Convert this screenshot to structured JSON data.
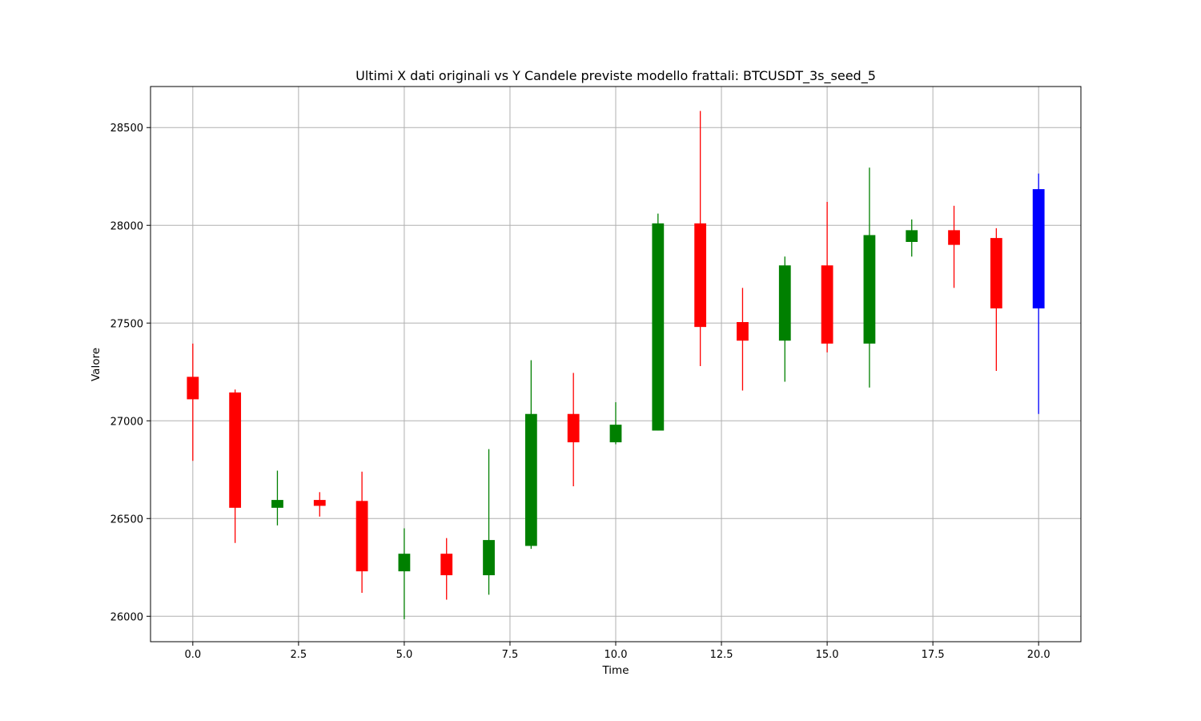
{
  "chart_data": {
    "type": "candlestick",
    "title": "Ultimi X dati originali vs Y Candele previste modello frattali: BTCUSDT_3s_seed_5",
    "xlabel": "Time",
    "ylabel": "Valore",
    "xlim": [
      -1,
      21
    ],
    "ylim": [
      25870,
      28710
    ],
    "xticks": [
      0.0,
      2.5,
      5.0,
      7.5,
      10.0,
      12.5,
      15.0,
      17.5,
      20.0
    ],
    "xtick_labels": [
      "0.0",
      "2.5",
      "5.0",
      "7.5",
      "10.0",
      "12.5",
      "15.0",
      "17.5",
      "20.0"
    ],
    "yticks": [
      26000,
      26500,
      27000,
      27500,
      28000,
      28500
    ],
    "ytick_labels": [
      "26000",
      "26500",
      "27000",
      "27500",
      "28000",
      "28500"
    ],
    "grid": true,
    "colors": {
      "up": "#008000",
      "down": "#ff0000",
      "predicted": "#0000ff",
      "grid": "#b0b0b0"
    },
    "candles": [
      {
        "x": 0,
        "open": 27225,
        "high": 27395,
        "low": 26795,
        "close": 27110,
        "color": "down"
      },
      {
        "x": 1,
        "open": 27145,
        "high": 27160,
        "low": 26375,
        "close": 26555,
        "color": "down"
      },
      {
        "x": 2,
        "open": 26555,
        "high": 26745,
        "low": 26465,
        "close": 26595,
        "color": "up"
      },
      {
        "x": 3,
        "open": 26595,
        "high": 26635,
        "low": 26510,
        "close": 26565,
        "color": "down"
      },
      {
        "x": 4,
        "open": 26590,
        "high": 26740,
        "low": 26120,
        "close": 26230,
        "color": "down"
      },
      {
        "x": 5,
        "open": 26230,
        "high": 26450,
        "low": 25985,
        "close": 26320,
        "color": "up"
      },
      {
        "x": 6,
        "open": 26320,
        "high": 26400,
        "low": 26085,
        "close": 26210,
        "color": "down"
      },
      {
        "x": 7,
        "open": 26210,
        "high": 26855,
        "low": 26110,
        "close": 26390,
        "color": "up"
      },
      {
        "x": 8,
        "open": 26360,
        "high": 27310,
        "low": 26345,
        "close": 27035,
        "color": "up"
      },
      {
        "x": 9,
        "open": 27035,
        "high": 27245,
        "low": 26665,
        "close": 26890,
        "color": "down"
      },
      {
        "x": 10,
        "open": 26890,
        "high": 27095,
        "low": 26880,
        "close": 26980,
        "color": "up"
      },
      {
        "x": 11,
        "open": 26950,
        "high": 28060,
        "low": 26950,
        "close": 28010,
        "color": "up"
      },
      {
        "x": 12,
        "open": 28010,
        "high": 28585,
        "low": 27280,
        "close": 27480,
        "color": "down"
      },
      {
        "x": 13,
        "open": 27505,
        "high": 27680,
        "low": 27155,
        "close": 27410,
        "color": "down"
      },
      {
        "x": 14,
        "open": 27410,
        "high": 27840,
        "low": 27200,
        "close": 27795,
        "color": "up"
      },
      {
        "x": 15,
        "open": 27795,
        "high": 28120,
        "low": 27350,
        "close": 27395,
        "color": "down"
      },
      {
        "x": 16,
        "open": 27395,
        "high": 28295,
        "low": 27170,
        "close": 27950,
        "color": "up"
      },
      {
        "x": 17,
        "open": 27915,
        "high": 28030,
        "low": 27840,
        "close": 27975,
        "color": "up"
      },
      {
        "x": 18,
        "open": 27975,
        "high": 28100,
        "low": 27680,
        "close": 27900,
        "color": "down"
      },
      {
        "x": 19,
        "open": 27935,
        "high": 27985,
        "low": 27255,
        "close": 27575,
        "color": "down"
      },
      {
        "x": 20,
        "open": 27575,
        "high": 28265,
        "low": 27035,
        "close": 28185,
        "color": "predicted"
      }
    ]
  }
}
